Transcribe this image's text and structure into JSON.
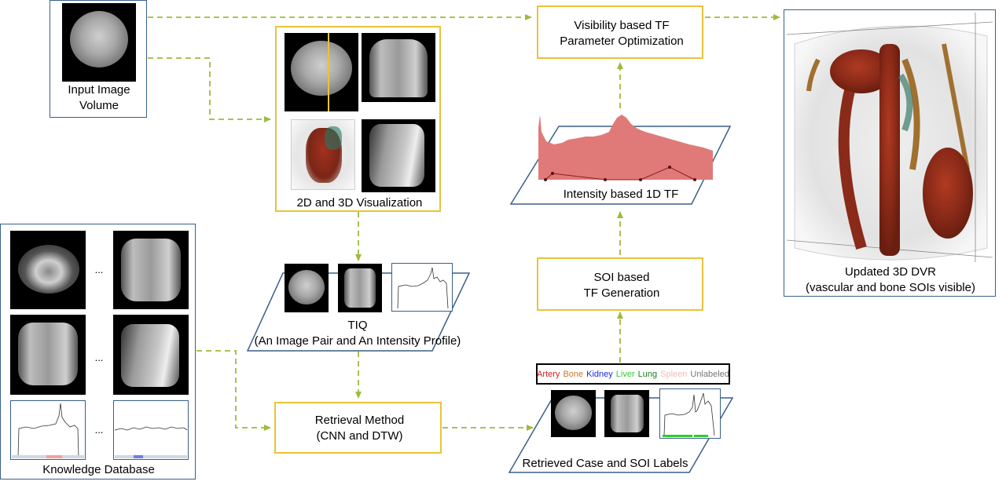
{
  "input": {
    "label_line1": "Input Image",
    "label_line2": "Volume"
  },
  "visualization": {
    "label": "2D and 3D Visualization"
  },
  "tiq": {
    "label_line1": "TIQ",
    "label_line2": "(An Image Pair and An Intensity Profile)"
  },
  "knowledge": {
    "label": "Knowledge Database",
    "ellipsis": "..."
  },
  "retrieval": {
    "label_line1": "Retrieval Method",
    "label_line2": "(CNN and DTW)"
  },
  "retrieved": {
    "label": "Retrieved Case and SOI Labels"
  },
  "soi_labels": [
    {
      "text": "Artery",
      "color": "#d42020"
    },
    {
      "text": "Bone",
      "color": "#c87a2a"
    },
    {
      "text": "Kidney",
      "color": "#1f2bd6"
    },
    {
      "text": "Liver",
      "color": "#2ecc2e"
    },
    {
      "text": "Lung",
      "color": "#1e7b1e"
    },
    {
      "text": "Spleen",
      "color": "#f2b9b9"
    },
    {
      "text": "Unlabeled",
      "color": "#777777"
    }
  ],
  "soi_tf": {
    "label_line1": "SOI based",
    "label_line2": "TF Generation"
  },
  "intensity_tf": {
    "label": "Intensity based 1D TF"
  },
  "visibility": {
    "label_line1": "Visibility based TF",
    "label_line2": "Parameter Optimization"
  },
  "updated": {
    "label_line1": "Updated 3D DVR",
    "label_line2": "(vascular and bone SOIs visible)"
  },
  "colors": {
    "arrow": "#9dbb3c",
    "blue_border": "#3a5f8a",
    "yellow_border": "#e8c33c",
    "tf_fill": "#e07a78"
  }
}
